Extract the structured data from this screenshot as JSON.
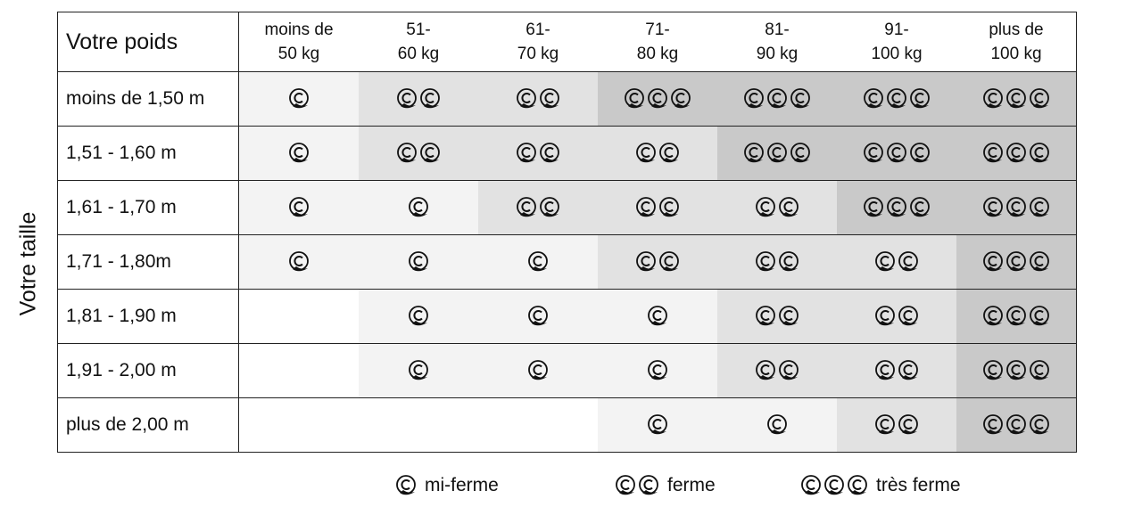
{
  "table": {
    "corner": "Votre poids",
    "side_label": "Votre taille",
    "columns": [
      "moins de\n50 kg",
      "51-\n60 kg",
      "61-\n70 kg",
      "71-\n80 kg",
      "81-\n90 kg",
      "91-\n100 kg",
      "plus de\n100 kg"
    ],
    "rows": [
      {
        "label": "moins de 1,50 m",
        "levels": [
          1,
          2,
          2,
          3,
          3,
          3,
          3
        ]
      },
      {
        "label": "1,51 - 1,60 m",
        "levels": [
          1,
          2,
          2,
          2,
          3,
          3,
          3
        ]
      },
      {
        "label": "1,61 - 1,70 m",
        "levels": [
          1,
          1,
          2,
          2,
          2,
          3,
          3
        ]
      },
      {
        "label": "1,71 - 1,80m",
        "levels": [
          1,
          1,
          1,
          2,
          2,
          2,
          3
        ]
      },
      {
        "label": "1,81 - 1,90 m",
        "levels": [
          null,
          1,
          1,
          1,
          2,
          2,
          3
        ]
      },
      {
        "label": "1,91 - 2,00 m",
        "levels": [
          null,
          1,
          1,
          1,
          2,
          2,
          3
        ]
      },
      {
        "label": "plus de 2,00 m",
        "levels": [
          null,
          null,
          null,
          1,
          1,
          2,
          3
        ]
      }
    ]
  },
  "legend": [
    {
      "level": 1,
      "label": "mi-ferme"
    },
    {
      "level": 2,
      "label": "ferme"
    },
    {
      "level": 3,
      "label": "très ferme"
    }
  ]
}
